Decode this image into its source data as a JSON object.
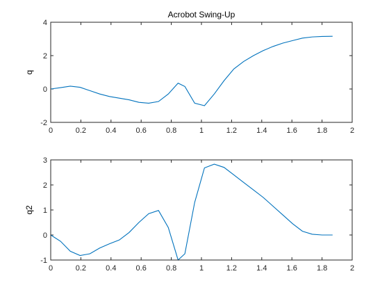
{
  "chart_data": [
    {
      "type": "line",
      "title": "Acrobot Swing-Up",
      "xlabel": "",
      "ylabel": "q",
      "xlim": [
        0,
        2
      ],
      "ylim": [
        -2,
        4
      ],
      "xticks": [
        0,
        0.2,
        0.4,
        0.6,
        0.8,
        1,
        1.2,
        1.4,
        1.6,
        1.8,
        2
      ],
      "xtick_labels": [
        "0",
        "0.2",
        "0.4",
        "0.6",
        "0.8",
        "1",
        "1.2",
        "1.4",
        "1.6",
        "1.8",
        "2"
      ],
      "yticks": [
        -2,
        0,
        2,
        4
      ],
      "ytick_labels": [
        "-2",
        "0",
        "2",
        "4"
      ],
      "grid": false,
      "color": "#0072BD",
      "series": [
        {
          "x": [
            0,
            0.065,
            0.13,
            0.195,
            0.26,
            0.325,
            0.39,
            0.455,
            0.52,
            0.585,
            0.65,
            0.715,
            0.78,
            0.845,
            0.89,
            0.955,
            1.02,
            1.085,
            1.15,
            1.215,
            1.28,
            1.345,
            1.41,
            1.475,
            1.54,
            1.605,
            1.67,
            1.735,
            1.8,
            1.87
          ],
          "y": [
            0,
            0.08,
            0.17,
            0.1,
            -0.1,
            -0.3,
            -0.45,
            -0.55,
            -0.65,
            -0.8,
            -0.85,
            -0.75,
            -0.3,
            0.35,
            0.15,
            -0.85,
            -1.0,
            -0.3,
            0.5,
            1.2,
            1.65,
            2.0,
            2.3,
            2.55,
            2.75,
            2.9,
            3.05,
            3.12,
            3.15,
            3.16
          ]
        }
      ]
    },
    {
      "type": "line",
      "title": "",
      "xlabel": "",
      "ylabel": "q2",
      "xlim": [
        0,
        2
      ],
      "ylim": [
        -1,
        3
      ],
      "xticks": [
        0,
        0.2,
        0.4,
        0.6,
        0.8,
        1,
        1.2,
        1.4,
        1.6,
        1.8,
        2
      ],
      "xtick_labels": [
        "0",
        "0.2",
        "0.4",
        "0.6",
        "0.8",
        "1",
        "1.2",
        "1.4",
        "1.6",
        "1.8",
        "2"
      ],
      "yticks": [
        -1,
        0,
        1,
        2,
        3
      ],
      "ytick_labels": [
        "-1",
        "0",
        "1",
        "2",
        "3"
      ],
      "grid": false,
      "color": "#0072BD",
      "series": [
        {
          "x": [
            0,
            0.065,
            0.13,
            0.195,
            0.26,
            0.325,
            0.39,
            0.455,
            0.52,
            0.585,
            0.65,
            0.715,
            0.78,
            0.845,
            0.89,
            0.955,
            1.02,
            1.085,
            1.15,
            1.215,
            1.28,
            1.345,
            1.41,
            1.475,
            1.54,
            1.605,
            1.67,
            1.735,
            1.8,
            1.87
          ],
          "y": [
            0,
            -0.25,
            -0.65,
            -0.82,
            -0.75,
            -0.52,
            -0.35,
            -0.2,
            0.1,
            0.5,
            0.85,
            0.98,
            0.3,
            -1.0,
            -0.75,
            1.3,
            2.68,
            2.83,
            2.7,
            2.4,
            2.1,
            1.8,
            1.5,
            1.15,
            0.8,
            0.45,
            0.15,
            0.03,
            0.0,
            0.0
          ]
        }
      ]
    }
  ]
}
